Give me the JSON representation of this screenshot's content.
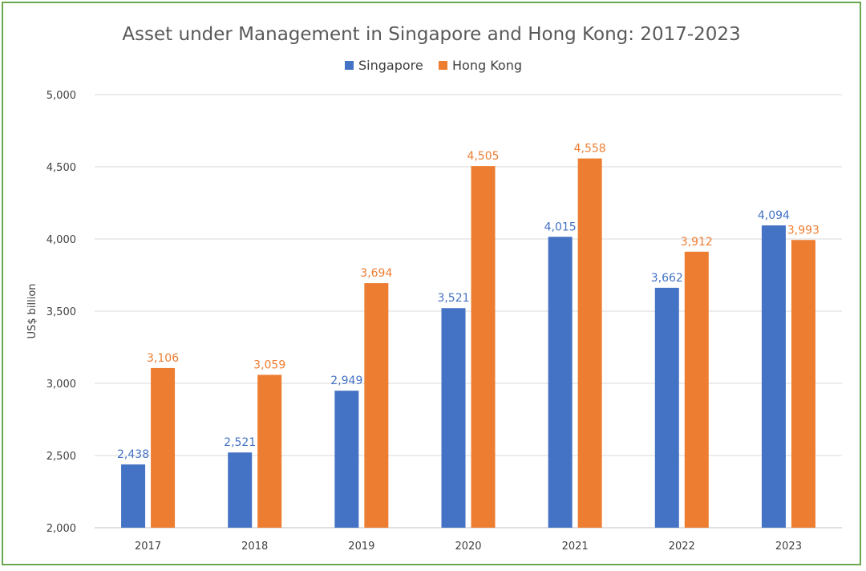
{
  "chart_data": {
    "type": "bar",
    "title": "Asset under Management in Singapore and Hong Kong: 2017-2023",
    "xlabel": "",
    "ylabel": "US$ billion",
    "ylim": [
      2000,
      5000
    ],
    "yticks": [
      2000,
      2500,
      3000,
      3500,
      4000,
      4500,
      5000
    ],
    "ytick_labels": [
      "2,000",
      "2,500",
      "3,000",
      "3,500",
      "4,000",
      "4,500",
      "5,000"
    ],
    "grid": true,
    "legend": "top-center",
    "categories": [
      "2017",
      "2018",
      "2019",
      "2020",
      "2021",
      "2022",
      "2023"
    ],
    "series": [
      {
        "name": "Singapore",
        "color": "#4472c4",
        "values": [
          2438,
          2521,
          2949,
          3521,
          4015,
          3662,
          4094
        ],
        "labels": [
          "2,438",
          "2,521",
          "2,949",
          "3,521",
          "4,015",
          "3,662",
          "4,094"
        ]
      },
      {
        "name": "Hong Kong",
        "color": "#ed7d31",
        "values": [
          3106,
          3059,
          3694,
          4505,
          4558,
          3912,
          3993
        ],
        "labels": [
          "3,106",
          "3,059",
          "3,694",
          "4,505",
          "4,558",
          "3,912",
          "3,993"
        ]
      }
    ]
  }
}
